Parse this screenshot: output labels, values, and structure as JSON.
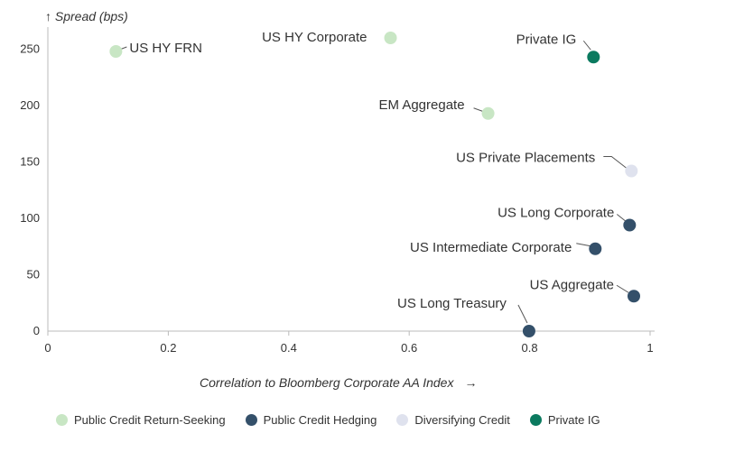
{
  "chart_data": {
    "type": "scatter",
    "ylabel": "Spread (bps)",
    "xlabel": "Correlation to Bloomberg Corporate AA Index",
    "xlim": [
      0,
      1
    ],
    "ylim": [
      0,
      260
    ],
    "x_ticks": [
      "0",
      "0.2",
      "0.4",
      "0.6",
      "0.8",
      "1"
    ],
    "y_ticks": [
      "0",
      "50",
      "100",
      "150",
      "200",
      "250"
    ],
    "series": [
      {
        "name": "Public Credit Return-Seeking",
        "color": "#c8e6c4",
        "points": [
          {
            "label": "US HY FRN",
            "x": 0.113,
            "y": 248
          },
          {
            "label": "US HY Corporate",
            "x": 0.569,
            "y": 260
          },
          {
            "label": "EM Aggregate",
            "x": 0.731,
            "y": 193
          }
        ]
      },
      {
        "name": "Public Credit Hedging",
        "color": "#34506a",
        "points": [
          {
            "label": "US Long Corporate",
            "x": 0.966,
            "y": 94
          },
          {
            "label": "US Intermediate Corporate",
            "x": 0.909,
            "y": 73
          },
          {
            "label": "US Aggregate",
            "x": 0.973,
            "y": 31
          },
          {
            "label": "US Long Treasury",
            "x": 0.799,
            "y": 0
          }
        ]
      },
      {
        "name": "Diversifying Credit",
        "color": "#dfe2ee",
        "points": [
          {
            "label": "US Private Placements",
            "x": 0.969,
            "y": 142
          }
        ]
      },
      {
        "name": "Private IG",
        "color": "#0b7a5f",
        "points": [
          {
            "label": "Private IG",
            "x": 0.906,
            "y": 243
          }
        ]
      }
    ],
    "grid": false,
    "legend_position": "bottom"
  }
}
